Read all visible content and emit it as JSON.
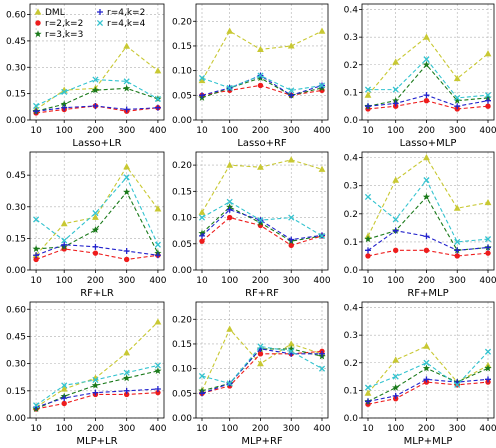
{
  "chart_data": {
    "type": "line",
    "grid": true,
    "legend_placement": "top-left",
    "legend_panel": 0,
    "x": [
      10,
      100,
      200,
      300,
      400
    ],
    "series_styles": [
      {
        "name": "DML",
        "color": "#c8c832",
        "marker": "triangle"
      },
      {
        "name": "r=2,k=2",
        "color": "#ee1c1c",
        "marker": "circle"
      },
      {
        "name": "r=3,k=3",
        "color": "#1a7a1a",
        "marker": "star"
      },
      {
        "name": "r=4,k=2",
        "color": "#2222cc",
        "marker": "plus"
      },
      {
        "name": "r=4,k=4",
        "color": "#33c3cf",
        "marker": "x"
      }
    ],
    "panels": [
      {
        "xlabel": "Lasso+LR",
        "ylim": [
          0,
          0.66
        ],
        "yticks": [
          "0.00",
          "0.15",
          "0.30",
          "0.45",
          "0.60"
        ],
        "ytick_values": [
          0,
          0.15,
          0.3,
          0.45,
          0.6
        ],
        "series": [
          [
            0.06,
            0.17,
            0.18,
            0.42,
            0.28
          ],
          [
            0.04,
            0.06,
            0.08,
            0.05,
            0.07
          ],
          [
            0.05,
            0.09,
            0.17,
            0.18,
            0.12
          ],
          [
            0.05,
            0.07,
            0.08,
            0.06,
            0.07
          ],
          [
            0.08,
            0.16,
            0.23,
            0.22,
            0.12
          ]
        ]
      },
      {
        "xlabel": "Lasso+RF",
        "ylim": [
          0,
          0.235
        ],
        "yticks": [
          "0.00",
          "0.05",
          "0.10",
          "0.15",
          "0.20"
        ],
        "ytick_values": [
          0,
          0.05,
          0.1,
          0.15,
          0.2
        ],
        "series": [
          [
            0.08,
            0.18,
            0.143,
            0.15,
            0.18
          ],
          [
            0.05,
            0.06,
            0.07,
            0.05,
            0.06
          ],
          [
            0.045,
            0.065,
            0.085,
            0.05,
            0.065
          ],
          [
            0.05,
            0.065,
            0.09,
            0.05,
            0.07
          ],
          [
            0.085,
            0.065,
            0.09,
            0.06,
            0.07
          ]
        ]
      },
      {
        "xlabel": "Lasso+MLP",
        "ylim": [
          0,
          0.42
        ],
        "yticks": [
          "0.0",
          "0.1",
          "0.2",
          "0.3",
          "0.4"
        ],
        "ytick_values": [
          0,
          0.1,
          0.2,
          0.3,
          0.4
        ],
        "series": [
          [
            0.09,
            0.21,
            0.3,
            0.15,
            0.24
          ],
          [
            0.04,
            0.05,
            0.07,
            0.04,
            0.05
          ],
          [
            0.05,
            0.07,
            0.2,
            0.07,
            0.08
          ],
          [
            0.05,
            0.06,
            0.09,
            0.05,
            0.07
          ],
          [
            0.11,
            0.11,
            0.22,
            0.08,
            0.09
          ]
        ]
      },
      {
        "xlabel": "RF+LR",
        "ylim": [
          0,
          0.56
        ],
        "yticks": [
          "0.00",
          "0.15",
          "0.30",
          "0.45"
        ],
        "ytick_values": [
          0,
          0.15,
          0.3,
          0.45
        ],
        "series": [
          [
            0.07,
            0.22,
            0.25,
            0.49,
            0.29
          ],
          [
            0.05,
            0.1,
            0.08,
            0.05,
            0.07
          ],
          [
            0.1,
            0.11,
            0.19,
            0.37,
            0.08
          ],
          [
            0.07,
            0.12,
            0.11,
            0.09,
            0.07
          ],
          [
            0.24,
            0.14,
            0.27,
            0.44,
            0.12
          ]
        ]
      },
      {
        "xlabel": "RF+RF",
        "ylim": [
          0,
          0.225
        ],
        "yticks": [
          "0.00",
          "0.05",
          "0.10",
          "0.15",
          "0.20"
        ],
        "ytick_values": [
          0,
          0.05,
          0.1,
          0.15,
          0.2
        ],
        "series": [
          [
            0.11,
            0.2,
            0.196,
            0.21,
            0.192
          ],
          [
            0.055,
            0.1,
            0.085,
            0.047,
            0.065
          ],
          [
            0.07,
            0.12,
            0.09,
            0.055,
            0.065
          ],
          [
            0.065,
            0.115,
            0.095,
            0.058,
            0.066
          ],
          [
            0.1,
            0.13,
            0.095,
            0.1,
            0.065
          ]
        ]
      },
      {
        "xlabel": "RF+MLP",
        "ylim": [
          0,
          0.42
        ],
        "yticks": [
          "0.0",
          "0.1",
          "0.2",
          "0.3",
          "0.4"
        ],
        "ytick_values": [
          0,
          0.1,
          0.2,
          0.3,
          0.4
        ],
        "series": [
          [
            0.12,
            0.32,
            0.4,
            0.22,
            0.24
          ],
          [
            0.05,
            0.07,
            0.07,
            0.05,
            0.06
          ],
          [
            0.11,
            0.14,
            0.26,
            0.07,
            0.08
          ],
          [
            0.07,
            0.14,
            0.12,
            0.07,
            0.08
          ],
          [
            0.26,
            0.18,
            0.32,
            0.1,
            0.11
          ]
        ]
      },
      {
        "xlabel": "MLP+LR",
        "ylim": [
          0,
          0.64
        ],
        "yticks": [
          "0.00",
          "0.15",
          "0.30",
          "0.45",
          "0.60"
        ],
        "ytick_values": [
          0,
          0.15,
          0.3,
          0.45,
          0.6
        ],
        "series": [
          [
            0.06,
            0.16,
            0.22,
            0.36,
            0.53
          ],
          [
            0.05,
            0.08,
            0.13,
            0.13,
            0.14
          ],
          [
            0.05,
            0.12,
            0.18,
            0.22,
            0.26
          ],
          [
            0.06,
            0.11,
            0.14,
            0.15,
            0.16
          ],
          [
            0.07,
            0.18,
            0.21,
            0.25,
            0.29
          ]
        ]
      },
      {
        "xlabel": "MLP+RF",
        "ylim": [
          0,
          0.235
        ],
        "yticks": [
          "0.00",
          "0.05",
          "0.10",
          "0.15",
          "0.20"
        ],
        "ytick_values": [
          0,
          0.05,
          0.1,
          0.15,
          0.2
        ],
        "series": [
          [
            0.055,
            0.18,
            0.11,
            0.15,
            0.13
          ],
          [
            0.05,
            0.065,
            0.13,
            0.13,
            0.135
          ],
          [
            0.055,
            0.07,
            0.14,
            0.14,
            0.125
          ],
          [
            0.05,
            0.07,
            0.14,
            0.13,
            0.13
          ],
          [
            0.085,
            0.07,
            0.145,
            0.135,
            0.1
          ]
        ]
      },
      {
        "xlabel": "MLP+MLP",
        "ylim": [
          0,
          0.42
        ],
        "yticks": [
          "0.0",
          "0.1",
          "0.2",
          "0.3",
          "0.4"
        ],
        "ytick_values": [
          0,
          0.1,
          0.2,
          0.3,
          0.4
        ],
        "series": [
          [
            0.09,
            0.21,
            0.26,
            0.13,
            0.19
          ],
          [
            0.05,
            0.07,
            0.13,
            0.12,
            0.13
          ],
          [
            0.06,
            0.11,
            0.18,
            0.13,
            0.18
          ],
          [
            0.06,
            0.08,
            0.14,
            0.13,
            0.14
          ],
          [
            0.11,
            0.15,
            0.2,
            0.12,
            0.24
          ]
        ]
      }
    ]
  }
}
